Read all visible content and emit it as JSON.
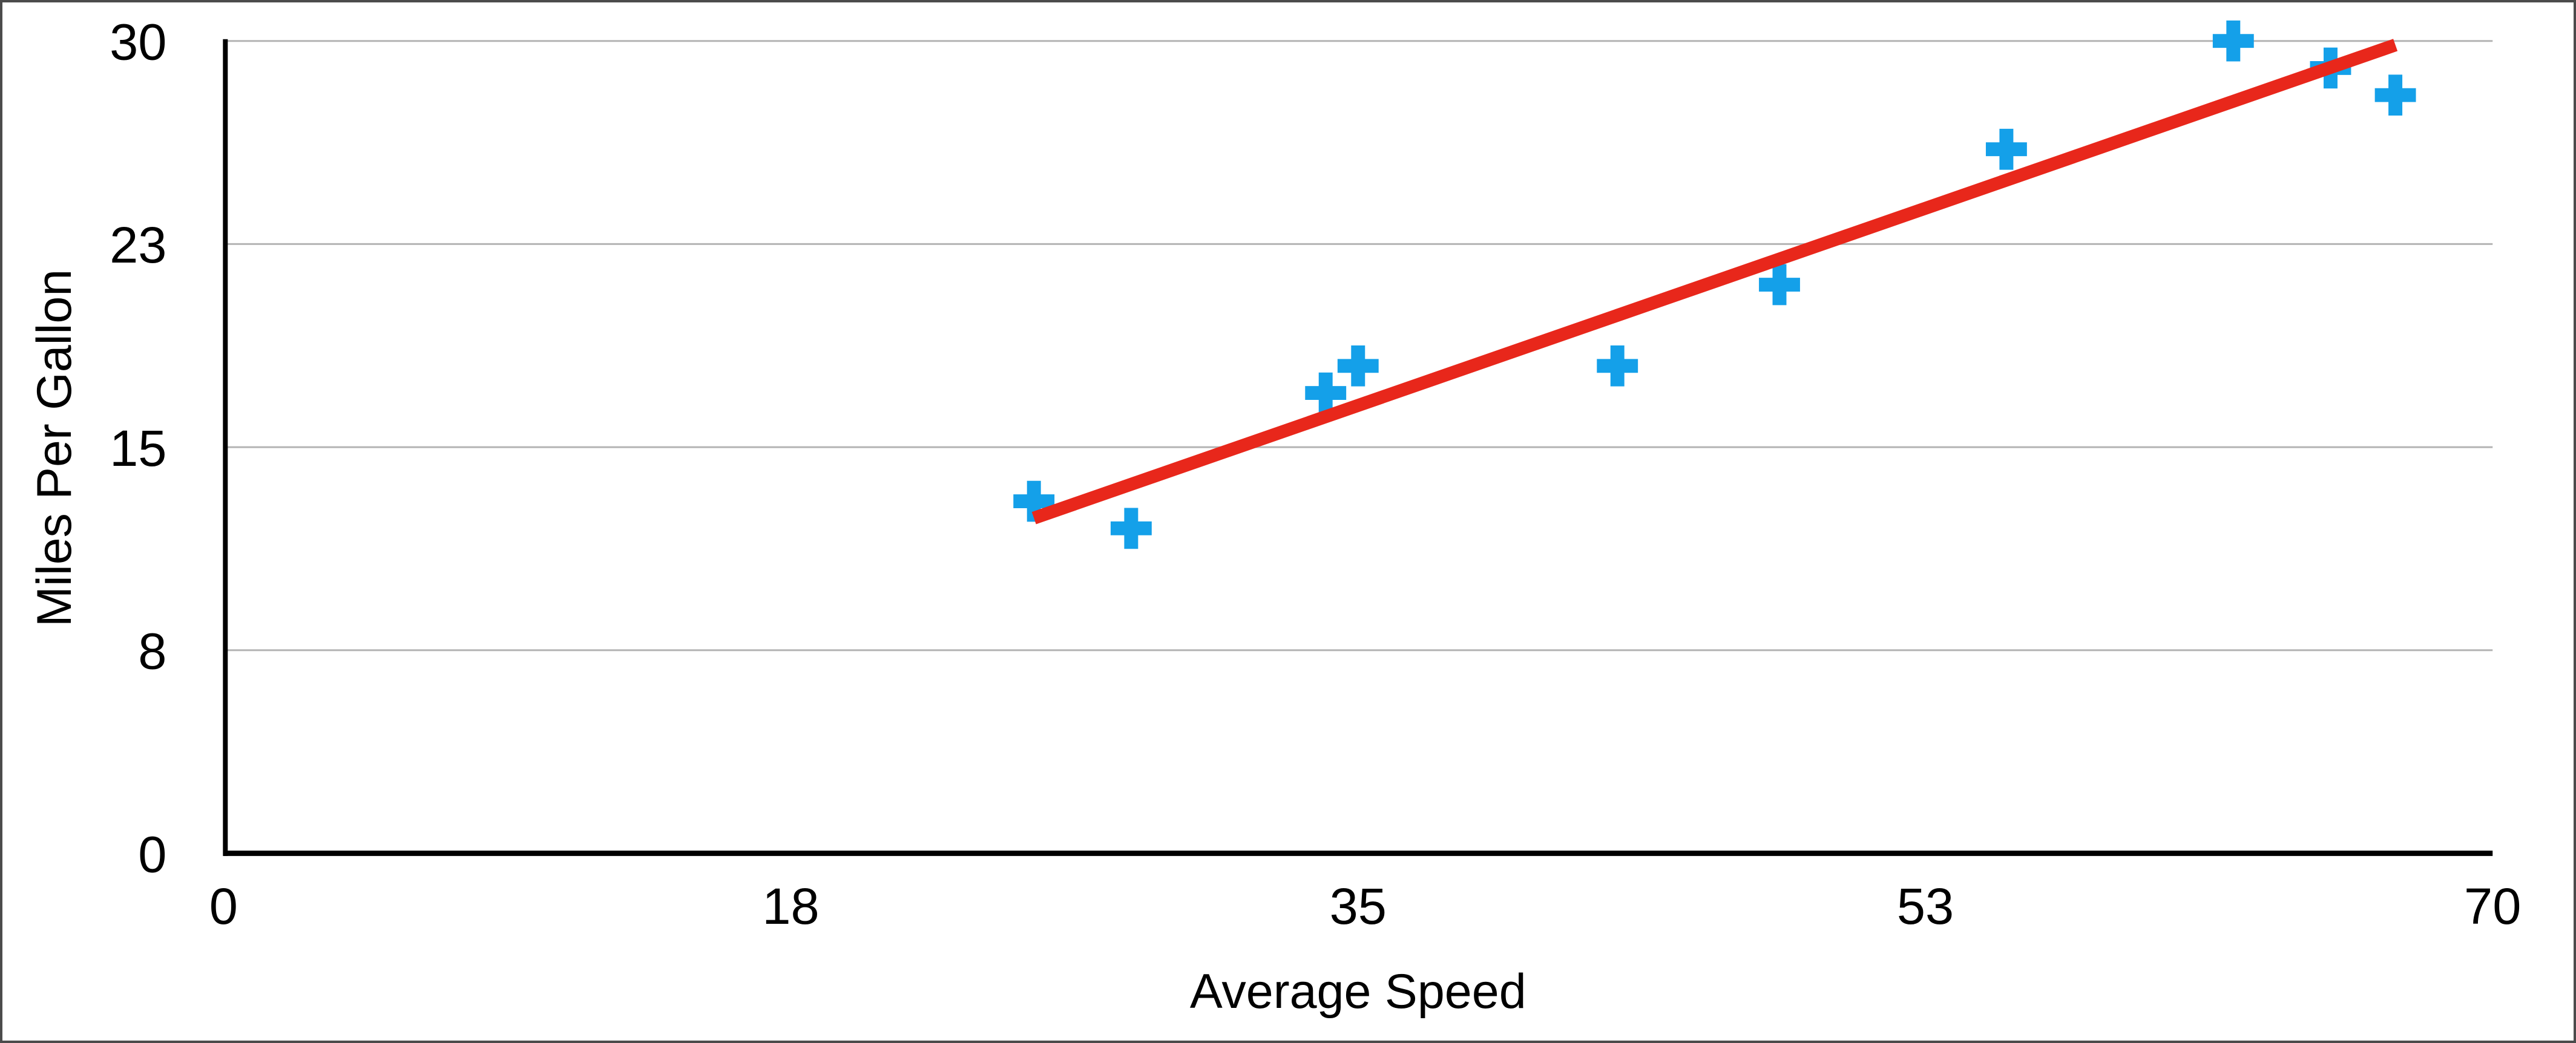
{
  "chart_data": {
    "type": "scatter",
    "title": "",
    "xlabel": "Average Speed",
    "ylabel": "Miles Per Gallon",
    "x_range": [
      0,
      70
    ],
    "y_range": [
      0,
      30
    ],
    "x_ticks": [
      {
        "value": 0,
        "label": "0"
      },
      {
        "value": 17.5,
        "label": "18"
      },
      {
        "value": 35,
        "label": "35"
      },
      {
        "value": 52.5,
        "label": "53"
      },
      {
        "value": 70,
        "label": "70"
      }
    ],
    "y_ticks": [
      {
        "value": 0,
        "label": "0"
      },
      {
        "value": 7.5,
        "label": "8"
      },
      {
        "value": 15,
        "label": "15"
      },
      {
        "value": 22.5,
        "label": "23"
      },
      {
        "value": 30,
        "label": "30"
      }
    ],
    "gridlines_y": [
      7.5,
      15,
      22.5,
      30
    ],
    "grid": true,
    "legend": "none",
    "series": [
      {
        "name": "Miles Per Gallon",
        "marker": "plus",
        "color": "#14a0e9",
        "points": [
          [
            25,
            13
          ],
          [
            28,
            12
          ],
          [
            34,
            17
          ],
          [
            35,
            18
          ],
          [
            43,
            18
          ],
          [
            48,
            21
          ],
          [
            55,
            26
          ],
          [
            62,
            30
          ],
          [
            65,
            29
          ],
          [
            67,
            28
          ]
        ]
      }
    ],
    "trendline": {
      "x_start": 25,
      "x_end": 67,
      "slope": 0.416,
      "intercept": 1.98,
      "color": "#e8271b"
    }
  },
  "colors": {
    "marker_blue": "#14a0e9",
    "trend_red": "#e8271b",
    "gridline": "#b4b4b4",
    "axis": "#000000",
    "background": "#ffffff",
    "border": "#4b4b4b"
  }
}
